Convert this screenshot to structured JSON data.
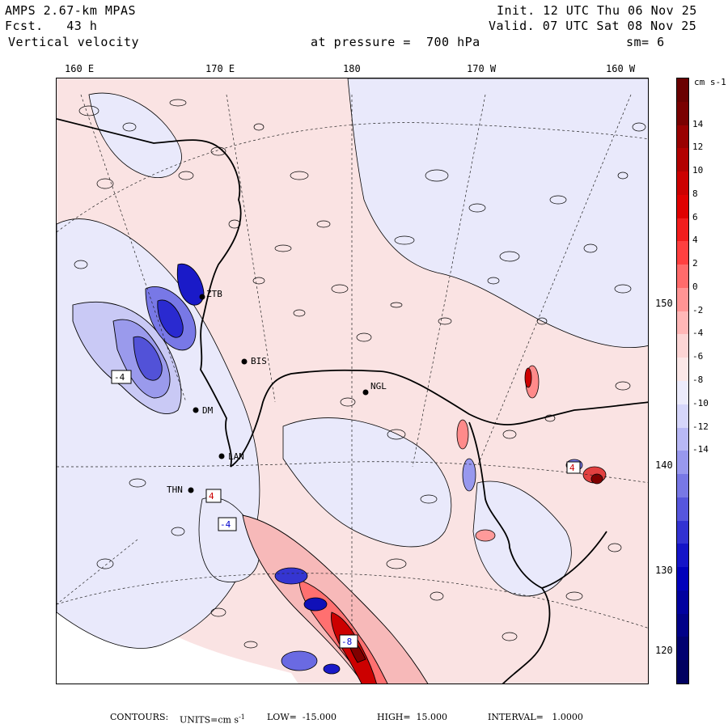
{
  "header": {
    "title": "AMPS 2.67-km MPAS",
    "forecast": "Fcst.   43 h",
    "field": "Vertical velocity",
    "init": "Init. 12 UTC Thu 06 Nov 25",
    "valid": "Valid. 07 UTC Sat 08 Nov 25",
    "level": "at pressure =  700 hPa",
    "smooth": "sm= 6"
  },
  "longitude_labels": [
    "160 E",
    "170 E",
    "180",
    "170 W",
    "160 W"
  ],
  "side_labels": [
    "150 W",
    "140 W",
    "130 W",
    "120 W"
  ],
  "colorbar": {
    "units": "cm s-1",
    "ticks": [
      "14",
      "12",
      "10",
      "8",
      "6",
      "4",
      "2",
      "0",
      "-2",
      "-4",
      "-6",
      "-8",
      "-10",
      "-12",
      "-14"
    ],
    "colors": [
      "#7a0000",
      "#990000",
      "#b20000",
      "#cc0000",
      "#e00000",
      "#f21d1d",
      "#ff4040",
      "#ff6b6b",
      "#ff9494",
      "#ffb7b7",
      "#fcd5d5",
      "#fbe7e7",
      "#ecebfb",
      "#d6d6fa",
      "#b8b8f5",
      "#9898ee",
      "#7878e6",
      "#5656dd",
      "#3232d2",
      "#1414c8",
      "#0000bb",
      "#00009f",
      "#000088",
      "#000070"
    ],
    "high_color": "#6a0000",
    "low_color": "#000060"
  },
  "stations": [
    {
      "code": "ZTB"
    },
    {
      "code": "BIS"
    },
    {
      "code": "NGL"
    },
    {
      "code": "DM"
    },
    {
      "code": "LAN"
    },
    {
      "code": "THN"
    }
  ],
  "extrema": [
    "-4",
    "4",
    "4",
    "-4",
    "-8"
  ],
  "footer": {
    "contours": "CONTOURS:",
    "units": "UNITS=cm s",
    "units_exp": "-1",
    "low": "LOW=  -15.000",
    "high": "HIGH=  15.000",
    "interval": "INTERVAL=   1.0000"
  }
}
